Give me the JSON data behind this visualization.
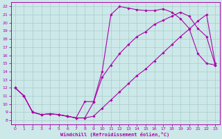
{
  "xlabel": "Windchill (Refroidissement éolien,°C)",
  "xlim": [
    -0.5,
    23.5
  ],
  "ylim": [
    7.5,
    22.5
  ],
  "xticks": [
    0,
    1,
    2,
    3,
    4,
    5,
    6,
    7,
    8,
    9,
    10,
    11,
    12,
    13,
    14,
    15,
    16,
    17,
    18,
    19,
    20,
    21,
    22,
    23
  ],
  "yticks": [
    8,
    9,
    10,
    11,
    12,
    13,
    14,
    15,
    16,
    17,
    18,
    19,
    20,
    21,
    22
  ],
  "bg_color": "#cce8e8",
  "line_color": "#aa00aa",
  "grid_color": "#aacccc",
  "line1_x": [
    0,
    1,
    2,
    3,
    4,
    5,
    6,
    7,
    8,
    9,
    10,
    11,
    12,
    13,
    14,
    15,
    16,
    17,
    18,
    19,
    20,
    21,
    22,
    23
  ],
  "line1_y": [
    12,
    11,
    9,
    8.7,
    8.8,
    8.7,
    8.5,
    8.3,
    8.3,
    10.2,
    13.3,
    14.8,
    16.2,
    17.3,
    18.3,
    18.9,
    19.8,
    20.3,
    20.8,
    21.3,
    20.8,
    19.3,
    18.3,
    14.8
  ],
  "line2_x": [
    0,
    1,
    2,
    3,
    4,
    5,
    6,
    7,
    8,
    9,
    10,
    11,
    12,
    13,
    14,
    15,
    16,
    17,
    18,
    19,
    20,
    21,
    22,
    23
  ],
  "line2_y": [
    12,
    11,
    9,
    8.7,
    8.8,
    8.7,
    8.5,
    8.3,
    10.3,
    10.3,
    14.0,
    21.0,
    22.0,
    21.8,
    21.6,
    21.5,
    21.5,
    21.7,
    21.3,
    20.5,
    19.3,
    16.2,
    15.0,
    14.8
  ],
  "line3_x": [
    0,
    1,
    2,
    3,
    4,
    5,
    6,
    7,
    8,
    9,
    10,
    11,
    12,
    13,
    14,
    15,
    16,
    17,
    18,
    19,
    20,
    21,
    22,
    23
  ],
  "line3_y": [
    12,
    11,
    9,
    8.7,
    8.8,
    8.7,
    8.5,
    8.3,
    8.3,
    8.5,
    9.5,
    10.5,
    11.5,
    12.5,
    13.5,
    14.3,
    15.3,
    16.3,
    17.3,
    18.3,
    19.2,
    20.2,
    21.0,
    15.0
  ]
}
